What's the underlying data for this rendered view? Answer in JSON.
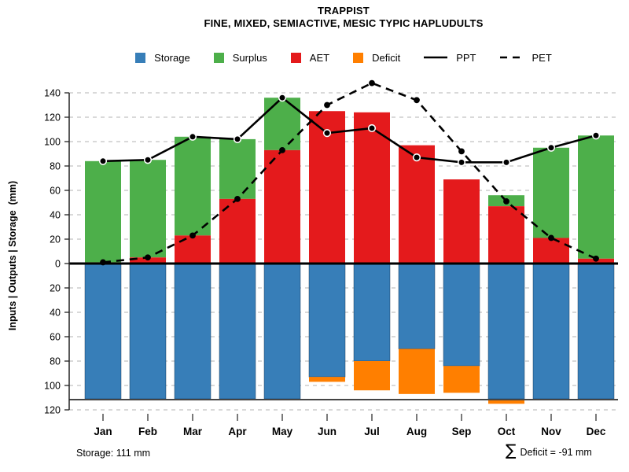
{
  "title": {
    "line1": "TRAPPIST",
    "line2": "FINE, MIXED, SEMIACTIVE, MESIC TYPIC HAPLUDULTS"
  },
  "annotations": {
    "storage_note": "Storage: 111 mm",
    "deficit_sigma": "∑",
    "deficit_note": "Deficit = -91 mm"
  },
  "colors": {
    "storage": "#377EB8",
    "surplus": "#4DAF4A",
    "aet": "#E41A1C",
    "deficit": "#FF7F00",
    "line": "#000000",
    "grid": "#c2c2c2"
  },
  "chart_data": {
    "type": "bar",
    "title": "TRAPPIST",
    "subtitle": "FINE, MIXED, SEMIACTIVE, MESIC TYPIC HAPLUDULTS",
    "ylabel": "Inputs | Outputs | Storage  (mm)",
    "xlabel": "",
    "grid": "dashed",
    "axis_mirrored": true,
    "y_ticks_up": [
      20,
      40,
      60,
      80,
      100,
      120,
      140
    ],
    "y_ticks_down": [
      20,
      40,
      60,
      80,
      100,
      120
    ],
    "zero_label": "0",
    "ylim_up": [
      0,
      150
    ],
    "ylim_down": [
      0,
      120
    ],
    "categories": [
      "Jan",
      "Feb",
      "Mar",
      "Apr",
      "May",
      "Jun",
      "Jul",
      "Aug",
      "Sep",
      "Oct",
      "Nov",
      "Dec"
    ],
    "series": [
      {
        "name": "Storage",
        "kind": "bar-down",
        "color": "#377EB8",
        "values": [
          111,
          111,
          111,
          111,
          111,
          93,
          80,
          70,
          84,
          111,
          111,
          111
        ]
      },
      {
        "name": "Surplus",
        "kind": "bar-up-stacked-on-AET",
        "color": "#4DAF4A",
        "values": [
          83,
          80,
          81,
          49,
          43,
          0,
          0,
          0,
          0,
          9,
          74,
          101
        ]
      },
      {
        "name": "AET",
        "kind": "bar-up",
        "color": "#E41A1C",
        "values": [
          1,
          5,
          23,
          53,
          93,
          125,
          124,
          97,
          69,
          47,
          21,
          4
        ]
      },
      {
        "name": "Deficit",
        "kind": "bar-down-stacked-on-Storage",
        "color": "#FF7F00",
        "values": [
          0,
          0,
          0,
          0,
          0,
          4,
          24,
          37,
          22,
          4,
          0,
          0
        ]
      },
      {
        "name": "PPT",
        "kind": "line-solid",
        "color": "#000000",
        "values": [
          84,
          85,
          104,
          102,
          136,
          107,
          111,
          87,
          83,
          83,
          95,
          105
        ]
      },
      {
        "name": "PET",
        "kind": "line-dashed",
        "color": "#000000",
        "values": [
          1,
          5,
          23,
          53,
          93,
          130,
          148,
          134,
          92,
          51,
          21,
          4
        ]
      }
    ],
    "legend": [
      {
        "label": "Storage",
        "marker": "square",
        "color": "#377EB8"
      },
      {
        "label": "Surplus",
        "marker": "square",
        "color": "#4DAF4A"
      },
      {
        "label": "AET",
        "marker": "square",
        "color": "#E41A1C"
      },
      {
        "label": "Deficit",
        "marker": "square",
        "color": "#FF7F00"
      },
      {
        "label": "PPT",
        "marker": "solid-line",
        "color": "#000000"
      },
      {
        "label": "PET",
        "marker": "dashed-line",
        "color": "#000000"
      }
    ],
    "legend_position": "top-center"
  }
}
